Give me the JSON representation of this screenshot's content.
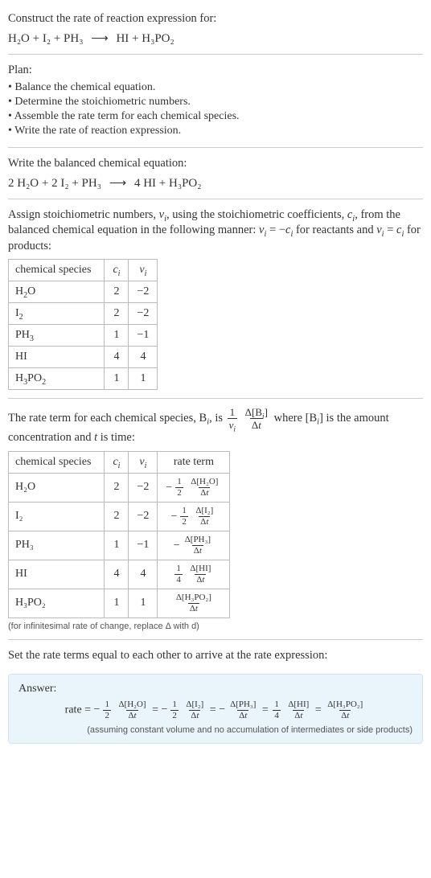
{
  "title": "Construct the rate of reaction expression for:",
  "unbalanced": {
    "lhs": "H₂O + I₂ + PH₃",
    "arrow": "⟶",
    "rhs": "HI + H₃PO₂"
  },
  "plan": {
    "heading": "Plan:",
    "items": [
      "Balance the chemical equation.",
      "Determine the stoichiometric numbers.",
      "Assemble the rate term for each chemical species.",
      "Write the rate of reaction expression."
    ]
  },
  "balanced": {
    "intro": "Write the balanced chemical equation:",
    "lhs": "2 H₂O + 2 I₂ + PH₃",
    "arrow": "⟶",
    "rhs": "4 HI + H₃PO₂"
  },
  "stoich_intro": {
    "pre": "Assign stoichiometric numbers, ",
    "nu": "ν",
    "nu_sub": "i",
    "mid1": ", using the stoichiometric coefficients, ",
    "c": "c",
    "c_sub": "i",
    "mid2": ", from the balanced chemical equation in the following manner: ",
    "eq1_lhs_sym": "ν",
    "eq1_lhs_sub": "i",
    "eq1_eq": " = −",
    "eq1_rhs_sym": "c",
    "eq1_rhs_sub": "i",
    "mid3": " for reactants and ",
    "eq2_lhs_sym": "ν",
    "eq2_lhs_sub": "i",
    "eq2_eq": " = ",
    "eq2_rhs_sym": "c",
    "eq2_rhs_sub": "i",
    "tail": " for products:"
  },
  "table1": {
    "cols": {
      "species": "chemical species",
      "c": "c",
      "c_sub": "i",
      "nu": "ν",
      "nu_sub": "i"
    },
    "rows": [
      {
        "sp_base": "H",
        "sp_sub": "2",
        "sp_tail": "O",
        "c": "2",
        "nu": "−2",
        "plain": false
      },
      {
        "sp_base": "I",
        "sp_sub": "2",
        "sp_tail": "",
        "c": "2",
        "nu": "−2",
        "plain": false
      },
      {
        "sp_base": "PH",
        "sp_sub": "3",
        "sp_tail": "",
        "c": "1",
        "nu": "−1",
        "plain": false
      },
      {
        "sp_base": "HI",
        "sp_sub": "",
        "sp_tail": "",
        "c": "4",
        "nu": "4",
        "plain": true
      },
      {
        "sp_base": "H",
        "sp_sub": "3",
        "sp_tail": "PO",
        "sp_sub2": "2",
        "c": "1",
        "nu": "1",
        "plain": false
      }
    ]
  },
  "rate_intro": {
    "pre": "The rate term for each chemical species, B",
    "b_sub": "i",
    "mid1": ", is ",
    "frac1_num": "1",
    "frac1_den_sym": "ν",
    "frac1_den_sub": "i",
    "frac2_num_pre": "Δ[B",
    "frac2_num_sub": "i",
    "frac2_num_post": "]",
    "frac2_den": "Δt",
    "mid2": " where [B",
    "mid2_sub": "i",
    "mid3": "] is the amount concentration and ",
    "t": "t",
    "tail": " is time:"
  },
  "table2": {
    "cols": {
      "species": "chemical species",
      "c": "c",
      "c_sub": "i",
      "nu": "ν",
      "nu_sub": "i",
      "rate": "rate term"
    },
    "rows": [
      {
        "sp": "H₂O",
        "c": "2",
        "nu": "−2",
        "neg": "−",
        "coef_num": "1",
        "coef_den": "2",
        "dnum": "Δ[H₂O]",
        "dden": "Δt"
      },
      {
        "sp": "I₂",
        "c": "2",
        "nu": "−2",
        "neg": "−",
        "coef_num": "1",
        "coef_den": "2",
        "dnum": "Δ[I₂]",
        "dden": "Δt"
      },
      {
        "sp": "PH₃",
        "c": "1",
        "nu": "−1",
        "neg": "−",
        "coef_num": "",
        "coef_den": "",
        "dnum": "Δ[PH₃]",
        "dden": "Δt"
      },
      {
        "sp": "HI",
        "c": "4",
        "nu": "4",
        "neg": "",
        "coef_num": "1",
        "coef_den": "4",
        "dnum": "Δ[HI]",
        "dden": "Δt"
      },
      {
        "sp": "H₃PO₂",
        "c": "1",
        "nu": "1",
        "neg": "",
        "coef_num": "",
        "coef_den": "",
        "dnum": "Δ[H₃PO₂]",
        "dden": "Δt"
      }
    ],
    "footnote": "(for infinitesimal rate of change, replace Δ with d)"
  },
  "set_equal": "Set the rate terms equal to each other to arrive at the rate expression:",
  "answer": {
    "label": "Answer:",
    "prefix": "rate = ",
    "terms": [
      {
        "neg": "−",
        "coef_num": "1",
        "coef_den": "2",
        "dnum": "Δ[H₂O]",
        "dden": "Δt"
      },
      {
        "neg": "−",
        "coef_num": "1",
        "coef_den": "2",
        "dnum": "Δ[I₂]",
        "dden": "Δt"
      },
      {
        "neg": "−",
        "coef_num": "",
        "coef_den": "",
        "dnum": "Δ[PH₃]",
        "dden": "Δt"
      },
      {
        "neg": "",
        "coef_num": "1",
        "coef_den": "4",
        "dnum": "Δ[HI]",
        "dden": "Δt"
      },
      {
        "neg": "",
        "coef_num": "",
        "coef_den": "",
        "dnum": "Δ[H₃PO₂]",
        "dden": "Δt"
      }
    ],
    "eq_sep": " = ",
    "note": "(assuming constant volume and no accumulation of intermediates or side products)"
  },
  "colors": {
    "text": "#333333",
    "border": "#bbbbbb",
    "divider": "#cccccc",
    "answer_bg": "#eaf4fb",
    "answer_border": "#cfe4f3",
    "footnote": "#555555"
  }
}
